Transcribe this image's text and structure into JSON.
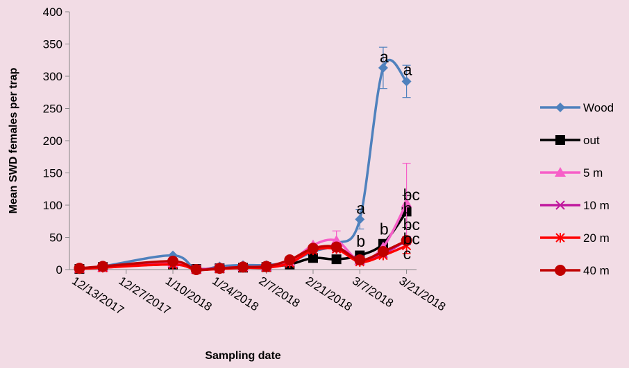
{
  "chart_data": {
    "type": "line",
    "x_label": "Sampling date",
    "y_label": "Mean SWD females per trap",
    "x": [
      "12/13/2017",
      "12/20/2017",
      "1/10/2018",
      "1/17/2018",
      "1/24/2018",
      "1/31/2018",
      "2/7/2018",
      "2/14/2018",
      "2/21/2018",
      "2/28/2018",
      "3/7/2018",
      "3/14/2018",
      "3/21/2018"
    ],
    "xlim": [
      "12/10/2017",
      "3/24/2018"
    ],
    "xticks": [
      "12/13/2017",
      "12/27/2017",
      "1/10/2018",
      "1/24/2018",
      "2/7/2018",
      "2/21/2018",
      "3/7/2018",
      "3/21/2018"
    ],
    "ylim": [
      0,
      400
    ],
    "yticks": [
      0,
      50,
      100,
      150,
      200,
      250,
      300,
      350,
      400
    ],
    "grid": false,
    "smooth": true,
    "legend": "right",
    "series": [
      {
        "name": "Wood",
        "color": "#4f81bd",
        "marker": "diamond",
        "values": [
          2,
          5,
          22,
          0,
          5,
          7,
          7,
          12,
          28,
          40,
          78,
          313,
          292
        ],
        "errors": [
          null,
          null,
          null,
          null,
          null,
          null,
          null,
          null,
          null,
          null,
          15,
          32,
          25
        ]
      },
      {
        "name": "out",
        "color": "#000000",
        "marker": "square",
        "values": [
          1,
          4,
          8,
          1,
          2,
          3,
          4,
          8,
          18,
          16,
          22,
          40,
          90
        ],
        "errors": [
          null,
          null,
          null,
          null,
          null,
          null,
          null,
          null,
          null,
          null,
          null,
          null,
          25
        ]
      },
      {
        "name": "5 m",
        "color": "#f75fc8",
        "marker": "triangle",
        "values": [
          2,
          3,
          10,
          0,
          2,
          4,
          5,
          12,
          38,
          45,
          14,
          35,
          103
        ],
        "errors": [
          null,
          null,
          null,
          null,
          null,
          null,
          null,
          null,
          null,
          15,
          null,
          null,
          62
        ]
      },
      {
        "name": "10 m",
        "color": "#c0189e",
        "marker": "x",
        "values": [
          1,
          4,
          8,
          1,
          2,
          3,
          4,
          10,
          30,
          35,
          15,
          25,
          45
        ],
        "errors": [
          null,
          null,
          null,
          null,
          null,
          null,
          null,
          null,
          null,
          null,
          null,
          null,
          null
        ]
      },
      {
        "name": "20 m",
        "color": "#ff0000",
        "marker": "asterisk",
        "values": [
          1,
          3,
          8,
          0,
          1,
          3,
          3,
          10,
          30,
          32,
          12,
          22,
          37
        ],
        "errors": [
          null,
          null,
          null,
          null,
          null,
          null,
          null,
          null,
          null,
          null,
          null,
          null,
          12
        ]
      },
      {
        "name": "40 m",
        "color": "#c00000",
        "marker": "circle",
        "values": [
          2,
          5,
          13,
          0,
          2,
          4,
          5,
          15,
          33,
          35,
          15,
          28,
          45
        ],
        "errors": [
          null,
          null,
          null,
          null,
          null,
          null,
          null,
          null,
          null,
          null,
          null,
          null,
          null
        ]
      }
    ],
    "annotations": [
      {
        "text": "a",
        "x": "3/14/2018",
        "y": 330
      },
      {
        "text": "a",
        "x": "3/21/2018",
        "y": 310
      },
      {
        "text": "a",
        "x": "3/7/2018",
        "y": 95
      },
      {
        "text": "b",
        "x": "3/7/2018",
        "y": 44
      },
      {
        "text": "b",
        "x": "3/14/2018",
        "y": 63
      },
      {
        "text": "bc",
        "x": "3/21/2018",
        "y": 116
      },
      {
        "text": "b",
        "x": "3/21/2018",
        "y": 95
      },
      {
        "text": "bc",
        "x": "3/21/2018",
        "y": 70
      },
      {
        "text": "bc",
        "x": "3/21/2018",
        "y": 48
      },
      {
        "text": "c",
        "x": "3/21/2018",
        "y": 25
      }
    ]
  }
}
